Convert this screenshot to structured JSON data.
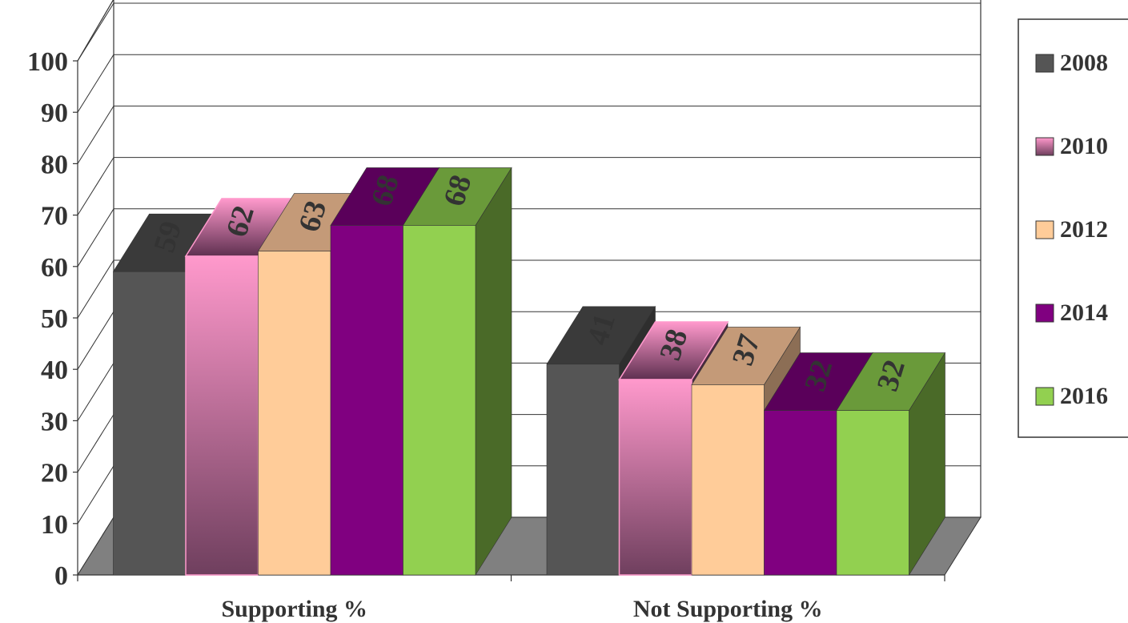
{
  "chart_data": {
    "type": "bar",
    "style": "3d-clustered-column",
    "categories": [
      "Supporting %",
      "Not Supporting %"
    ],
    "series": [
      {
        "name": "2008",
        "values": [
          59,
          41
        ],
        "color": "#555555",
        "top_color": "#3a3a3a",
        "side_color": "#2e2e2e",
        "fill": "solid"
      },
      {
        "name": "2010",
        "values": [
          62,
          38
        ],
        "color": "#ff99cc",
        "color_bottom": "#6f3f5e",
        "top_color": "#5e3050",
        "side_color": "#4a2a40",
        "fill": "gradient"
      },
      {
        "name": "2012",
        "values": [
          63,
          37
        ],
        "color": "#ffcc99",
        "top_color": "#c49a78",
        "side_color": "#8c6e55",
        "fill": "solid"
      },
      {
        "name": "2014",
        "values": [
          68,
          32
        ],
        "color": "#800080",
        "top_color": "#5a005a",
        "side_color": "#400040",
        "fill": "solid"
      },
      {
        "name": "2016",
        "values": [
          68,
          32
        ],
        "color": "#92d050",
        "top_color": "#6a9a3a",
        "side_color": "#4a6a28",
        "fill": "solid"
      }
    ],
    "yticks": [
      "0",
      "10",
      "20",
      "30",
      "40",
      "50",
      "60",
      "70",
      "80",
      "90",
      "100"
    ],
    "ylim": [
      0,
      100
    ],
    "grid": true,
    "legend": "right",
    "data_labels": true
  }
}
